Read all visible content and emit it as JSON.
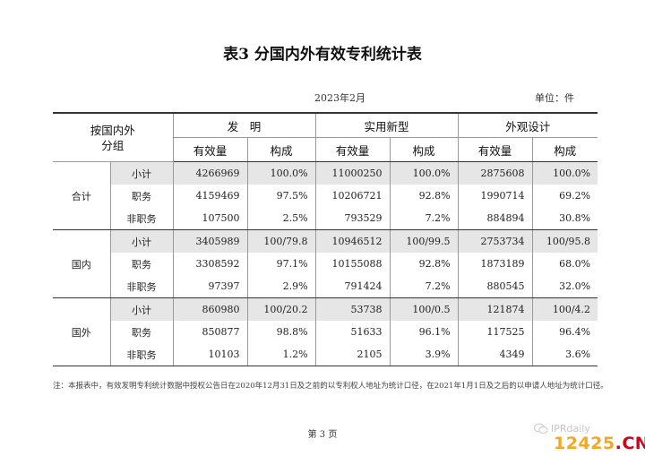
{
  "title": "表3  分国内外有效专利统计表",
  "date": "2023年2月",
  "unit": "单位：件",
  "header": {
    "group_col": [
      "按国内外",
      "分组"
    ],
    "categories": [
      "发　明",
      "实用新型",
      "外观设计"
    ],
    "sub_cols": [
      "有效量",
      "构成"
    ]
  },
  "groups": [
    {
      "name": "合计",
      "rows": [
        {
          "label": "小计",
          "values": [
            "4266969",
            "100.0%",
            "11000250",
            "100.0%",
            "2875608",
            "100.0%"
          ]
        },
        {
          "label": "职务",
          "values": [
            "4159469",
            "97.5%",
            "10206721",
            "92.8%",
            "1990714",
            "69.2%"
          ]
        },
        {
          "label": "非职务",
          "values": [
            "107500",
            "2.5%",
            "793529",
            "7.2%",
            "884894",
            "30.8%"
          ]
        }
      ]
    },
    {
      "name": "国内",
      "rows": [
        {
          "label": "小计",
          "values": [
            "3405989",
            "100/79.8",
            "10946512",
            "100/99.5",
            "2753734",
            "100/95.8"
          ]
        },
        {
          "label": "职务",
          "values": [
            "3308592",
            "97.1%",
            "10155088",
            "92.8%",
            "1873189",
            "68.0%"
          ]
        },
        {
          "label": "非职务",
          "values": [
            "97397",
            "2.9%",
            "791424",
            "7.2%",
            "880545",
            "32.0%"
          ]
        }
      ]
    },
    {
      "name": "国外",
      "rows": [
        {
          "label": "小计",
          "values": [
            "860980",
            "100/20.2",
            "53738",
            "100/0.5",
            "121874",
            "100/4.2"
          ]
        },
        {
          "label": "职务",
          "values": [
            "850877",
            "98.8%",
            "51633",
            "96.1%",
            "117525",
            "96.4%"
          ]
        },
        {
          "label": "非职务",
          "values": [
            "10103",
            "1.2%",
            "2105",
            "3.9%",
            "4349",
            "3.6%"
          ]
        }
      ]
    }
  ],
  "note": "注：本报表中，有效发明专利统计数据中授权公告日在2020年12月31日及之前的以专利权人地址为统计口径，在2021年1月1日及之后的以申请人地址为统计口径。",
  "page_number": "第 3 页",
  "watermark_text": "IPRdaily",
  "site": {
    "main": "12425",
    "suffix": ".CN"
  },
  "colors": {
    "shade": "#e6e6e6",
    "site_orange": "#f5a623",
    "site_red": "#d0021b"
  }
}
